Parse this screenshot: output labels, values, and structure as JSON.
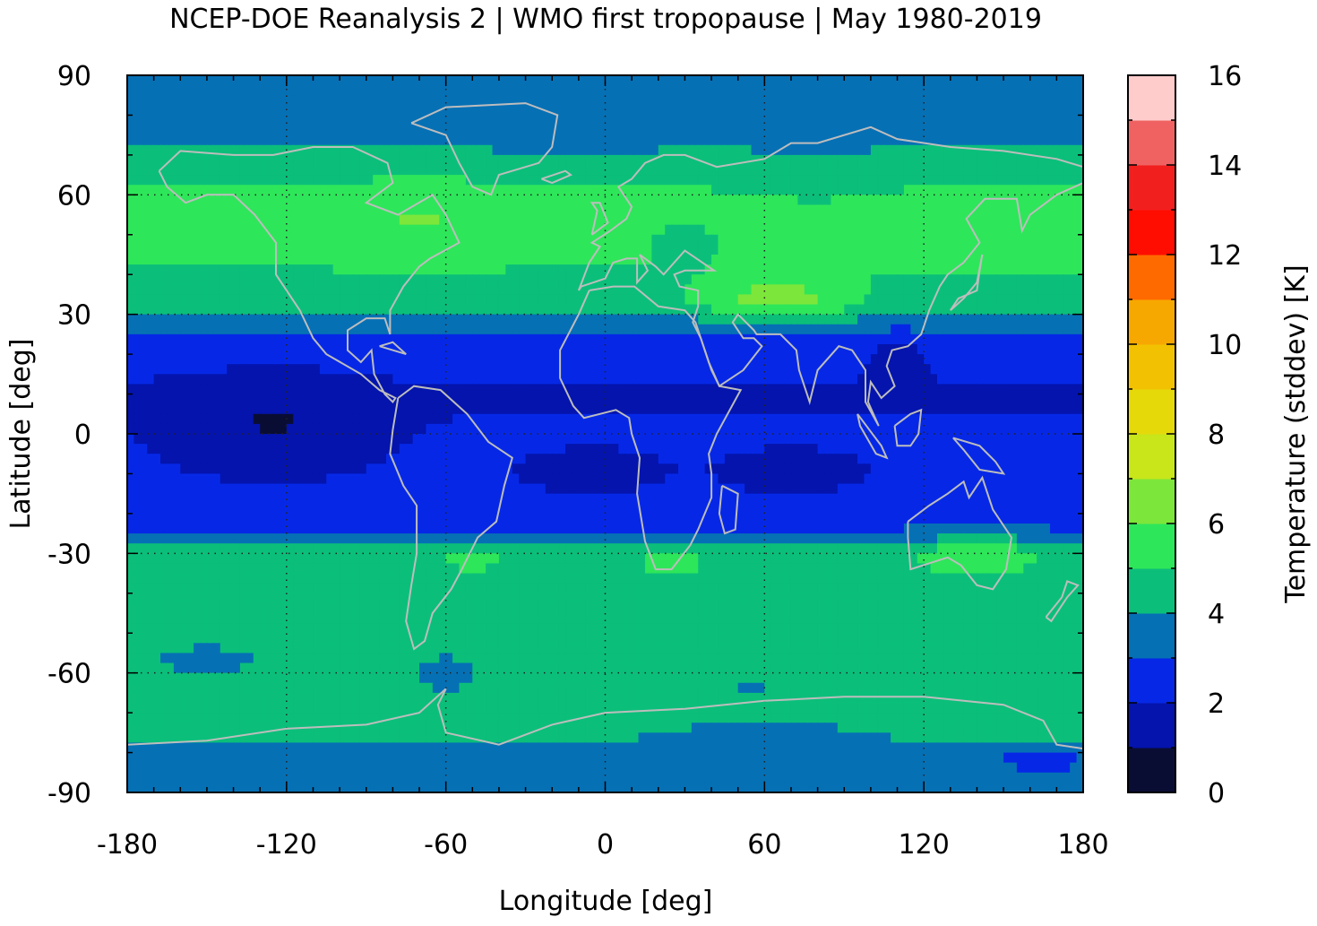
{
  "chart_data": {
    "type": "heatmap",
    "title": "NCEP-DOE Reanalysis 2 | WMO first tropopause | May 1980-2019",
    "xlabel": "Longitude [deg]",
    "ylabel": "Latitude [deg]",
    "xlim": [
      -180,
      180
    ],
    "ylim": [
      -90,
      90
    ],
    "x_ticks": [
      "-180",
      "-120",
      "-60",
      "0",
      "60",
      "120",
      "180"
    ],
    "y_ticks": [
      "90",
      "60",
      "30",
      "0",
      "-30",
      "-60",
      "-90"
    ],
    "grid": true,
    "colorbar": {
      "label": "Temperature (stddev) [K]",
      "range": [
        0,
        16
      ],
      "tick_labels": [
        "0",
        "2",
        "4",
        "6",
        "8",
        "10",
        "12",
        "14",
        "16"
      ],
      "levels": [
        0,
        1,
        2,
        3,
        4,
        5,
        6,
        7,
        8,
        9,
        10,
        11,
        12,
        13,
        14,
        15,
        16
      ],
      "colors": [
        "#0a0d33",
        "#0414ad",
        "#0628e6",
        "#0670b5",
        "#0bbf7a",
        "#2ee65a",
        "#7de63a",
        "#c8e61a",
        "#e6d90a",
        "#f2c202",
        "#f7a800",
        "#ff6a00",
        "#ff0d00",
        "#f21f1f",
        "#f06262",
        "#ffcccc"
      ]
    },
    "zonal_profile_K": [
      {
        "lat": 90,
        "value": 3.5
      },
      {
        "lat": 75,
        "value": 3.5
      },
      {
        "lat": 68,
        "value": 4.5
      },
      {
        "lat": 55,
        "value": 5.5
      },
      {
        "lat": 45,
        "value": 5.2
      },
      {
        "lat": 33,
        "value": 4.5
      },
      {
        "lat": 28,
        "value": 3.5
      },
      {
        "lat": 22,
        "value": 2.5
      },
      {
        "lat": 10,
        "value": 1.9
      },
      {
        "lat": 0,
        "value": 2.1
      },
      {
        "lat": -10,
        "value": 2.2
      },
      {
        "lat": -22,
        "value": 2.5
      },
      {
        "lat": -26,
        "value": 3.5
      },
      {
        "lat": -30,
        "value": 4.6
      },
      {
        "lat": -45,
        "value": 4.5
      },
      {
        "lat": -60,
        "value": 4.6
      },
      {
        "lat": -68,
        "value": 4.5
      },
      {
        "lat": -75,
        "value": 4.5
      },
      {
        "lat": -80,
        "value": 3.6
      },
      {
        "lat": -90,
        "value": 3.5
      }
    ]
  }
}
